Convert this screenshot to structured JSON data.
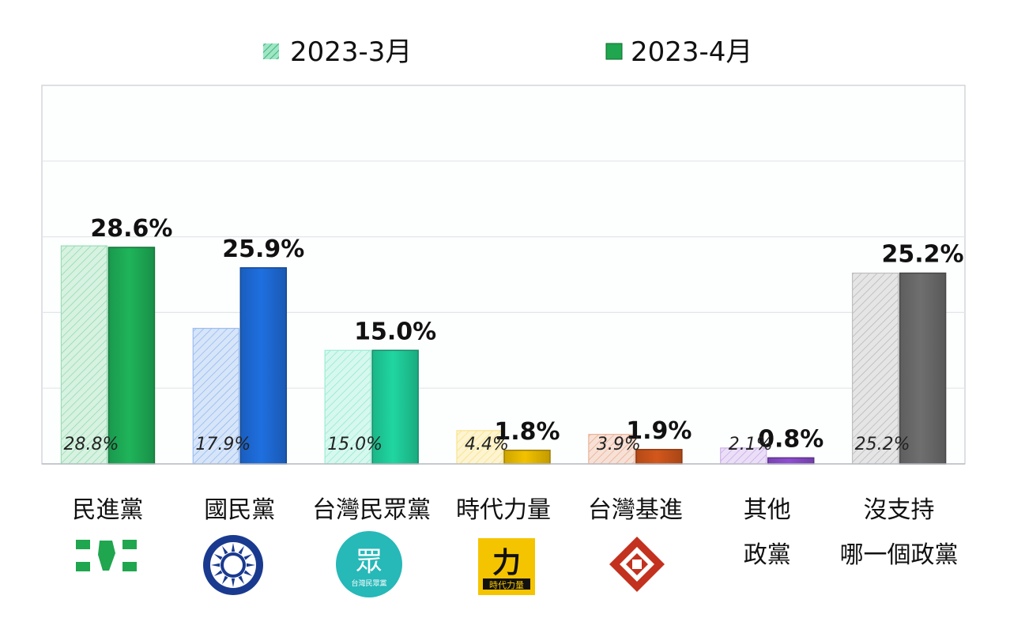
{
  "chart_data": {
    "type": "bar",
    "categories": [
      {
        "label_lines": [
          "民進黨"
        ],
        "color": "#1fb45a"
      },
      {
        "label_lines": [
          "國民黨"
        ],
        "color": "#1f6fe0"
      },
      {
        "label_lines": [
          "台灣民眾黨"
        ],
        "color": "#20d6a0"
      },
      {
        "label_lines": [
          "時代力量"
        ],
        "color": "#f2c200"
      },
      {
        "label_lines": [
          "台灣基進"
        ],
        "color": "#d3571c"
      },
      {
        "label_lines": [
          "其他",
          "政黨"
        ],
        "color": "#8e4fd1"
      },
      {
        "label_lines": [
          "沒支持",
          "哪一個政黨"
        ],
        "color": "#6f6f6f"
      }
    ],
    "series": [
      {
        "name": "2023-3月",
        "pattern": "hatched",
        "values": [
          28.8,
          17.9,
          15.0,
          4.4,
          3.9,
          2.1,
          25.2
        ],
        "value_labels": [
          "28.8%",
          "17.9%",
          "15.0%",
          "4.4%",
          "3.9%",
          "2.1%",
          "25.2%"
        ]
      },
      {
        "name": "2023-4月",
        "pattern": "solid",
        "values": [
          28.6,
          25.9,
          15.0,
          1.8,
          1.9,
          0.8,
          25.2
        ],
        "value_labels": [
          "28.6%",
          "25.9%",
          "15.0%",
          "1.8%",
          "1.9%",
          "0.8%",
          "25.2%"
        ]
      }
    ],
    "ylim": [
      0,
      50
    ],
    "grid": true,
    "legend_position": "top",
    "legend_colors": {
      "march": "#9fe6c4",
      "april": "#1fa64e"
    }
  },
  "logos": {
    "tpp_char": "眾",
    "tpp_sub": "台灣民眾黨",
    "npp_char": "力",
    "npp_sub": "時代力量"
  }
}
